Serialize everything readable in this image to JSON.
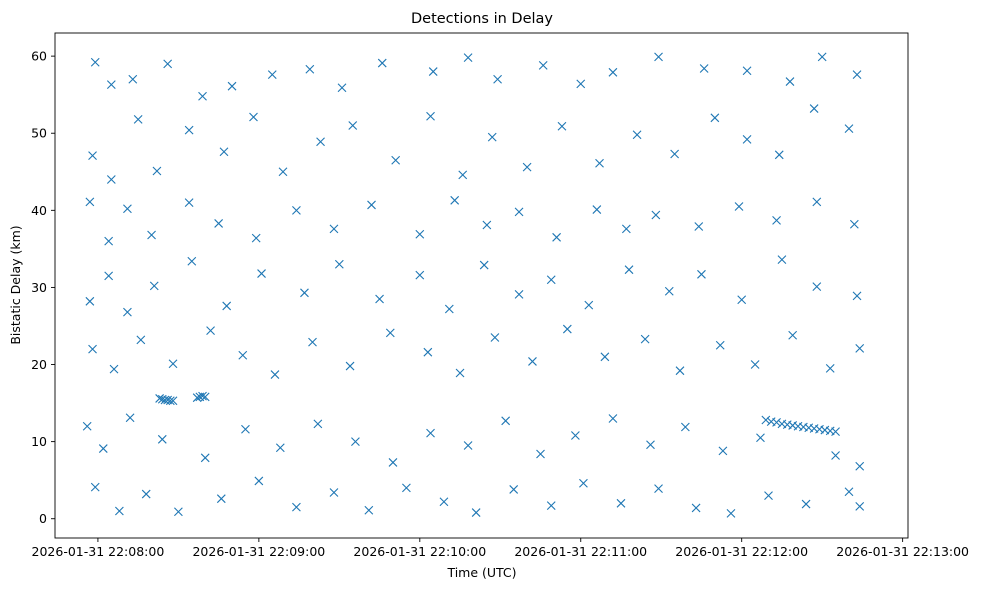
{
  "chart_data": {
    "type": "scatter",
    "title": "Detections in Delay",
    "xlabel": "Time (UTC)",
    "ylabel": "Bistatic Delay (km)",
    "marker": "x",
    "color": "#1f77b4",
    "grid": false,
    "xlim": [
      "2026-01-31 22:07:44",
      "2026-01-31 22:13:02"
    ],
    "ylim": [
      -2.5,
      63
    ],
    "x_ticks": [
      "2026-01-31 22:08:00",
      "2026-01-31 22:09:00",
      "2026-01-31 22:10:00",
      "2026-01-31 22:11:00",
      "2026-01-31 22:12:00",
      "2026-01-31 22:13:00"
    ],
    "y_ticks": [
      "0",
      "10",
      "20",
      "30",
      "40",
      "50",
      "60"
    ],
    "series": [
      {
        "points": [
          [
            "2026-01-31 22:07:59",
            59.2
          ],
          [
            "2026-01-31 22:08:05",
            56.3
          ],
          [
            "2026-01-31 22:08:13",
            57.0
          ],
          [
            "2026-01-31 22:08:26",
            59.0
          ],
          [
            "2026-01-31 22:08:39",
            54.8
          ],
          [
            "2026-01-31 22:08:50",
            56.1
          ],
          [
            "2026-01-31 22:09:05",
            57.6
          ],
          [
            "2026-01-31 22:09:19",
            58.3
          ],
          [
            "2026-01-31 22:09:31",
            55.9
          ],
          [
            "2026-01-31 22:09:46",
            59.1
          ],
          [
            "2026-01-31 22:10:05",
            58.0
          ],
          [
            "2026-01-31 22:10:18",
            59.8
          ],
          [
            "2026-01-31 22:10:29",
            57.0
          ],
          [
            "2026-01-31 22:10:46",
            58.8
          ],
          [
            "2026-01-31 22:11:00",
            56.4
          ],
          [
            "2026-01-31 22:11:12",
            57.9
          ],
          [
            "2026-01-31 22:11:29",
            59.9
          ],
          [
            "2026-01-31 22:11:46",
            58.4
          ],
          [
            "2026-01-31 22:12:02",
            58.1
          ],
          [
            "2026-01-31 22:12:18",
            56.7
          ],
          [
            "2026-01-31 22:12:30",
            59.9
          ],
          [
            "2026-01-31 22:12:43",
            57.6
          ],
          [
            "2026-01-31 22:07:58",
            47.1
          ],
          [
            "2026-01-31 22:08:05",
            44.0
          ],
          [
            "2026-01-31 22:08:15",
            51.8
          ],
          [
            "2026-01-31 22:08:22",
            45.1
          ],
          [
            "2026-01-31 22:08:34",
            50.4
          ],
          [
            "2026-01-31 22:08:47",
            47.6
          ],
          [
            "2026-01-31 22:08:58",
            52.1
          ],
          [
            "2026-01-31 22:09:09",
            45.0
          ],
          [
            "2026-01-31 22:09:23",
            48.9
          ],
          [
            "2026-01-31 22:09:35",
            51.0
          ],
          [
            "2026-01-31 22:09:51",
            46.5
          ],
          [
            "2026-01-31 22:10:04",
            52.2
          ],
          [
            "2026-01-31 22:10:16",
            44.6
          ],
          [
            "2026-01-31 22:10:27",
            49.5
          ],
          [
            "2026-01-31 22:10:40",
            45.6
          ],
          [
            "2026-01-31 22:10:53",
            50.9
          ],
          [
            "2026-01-31 22:11:07",
            46.1
          ],
          [
            "2026-01-31 22:11:21",
            49.8
          ],
          [
            "2026-01-31 22:11:35",
            47.3
          ],
          [
            "2026-01-31 22:11:50",
            52.0
          ],
          [
            "2026-01-31 22:12:02",
            49.2
          ],
          [
            "2026-01-31 22:12:14",
            47.2
          ],
          [
            "2026-01-31 22:12:27",
            53.2
          ],
          [
            "2026-01-31 22:12:40",
            50.6
          ],
          [
            "2026-01-31 22:07:57",
            41.1
          ],
          [
            "2026-01-31 22:08:04",
            36.0
          ],
          [
            "2026-01-31 22:08:11",
            40.2
          ],
          [
            "2026-01-31 22:08:20",
            36.8
          ],
          [
            "2026-01-31 22:08:34",
            41.0
          ],
          [
            "2026-01-31 22:08:45",
            38.3
          ],
          [
            "2026-01-31 22:08:59",
            36.4
          ],
          [
            "2026-01-31 22:09:14",
            40.0
          ],
          [
            "2026-01-31 22:09:28",
            37.6
          ],
          [
            "2026-01-31 22:09:42",
            40.7
          ],
          [
            "2026-01-31 22:10:00",
            36.9
          ],
          [
            "2026-01-31 22:10:13",
            41.3
          ],
          [
            "2026-01-31 22:10:25",
            38.1
          ],
          [
            "2026-01-31 22:10:37",
            39.8
          ],
          [
            "2026-01-31 22:10:51",
            36.5
          ],
          [
            "2026-01-31 22:11:06",
            40.1
          ],
          [
            "2026-01-31 22:11:17",
            37.6
          ],
          [
            "2026-01-31 22:11:28",
            39.4
          ],
          [
            "2026-01-31 22:11:44",
            37.9
          ],
          [
            "2026-01-31 22:11:59",
            40.5
          ],
          [
            "2026-01-31 22:12:13",
            38.7
          ],
          [
            "2026-01-31 22:12:28",
            41.1
          ],
          [
            "2026-01-31 22:12:42",
            38.2
          ],
          [
            "2026-01-31 22:07:57",
            28.2
          ],
          [
            "2026-01-31 22:08:04",
            31.5
          ],
          [
            "2026-01-31 22:08:11",
            26.8
          ],
          [
            "2026-01-31 22:08:21",
            30.2
          ],
          [
            "2026-01-31 22:08:35",
            33.4
          ],
          [
            "2026-01-31 22:08:48",
            27.6
          ],
          [
            "2026-01-31 22:09:01",
            31.8
          ],
          [
            "2026-01-31 22:09:17",
            29.3
          ],
          [
            "2026-01-31 22:09:30",
            33.0
          ],
          [
            "2026-01-31 22:09:45",
            28.5
          ],
          [
            "2026-01-31 22:10:00",
            31.6
          ],
          [
            "2026-01-31 22:10:11",
            27.2
          ],
          [
            "2026-01-31 22:10:24",
            32.9
          ],
          [
            "2026-01-31 22:10:37",
            29.1
          ],
          [
            "2026-01-31 22:10:49",
            31.0
          ],
          [
            "2026-01-31 22:11:03",
            27.7
          ],
          [
            "2026-01-31 22:11:18",
            32.3
          ],
          [
            "2026-01-31 22:11:33",
            29.5
          ],
          [
            "2026-01-31 22:11:45",
            31.7
          ],
          [
            "2026-01-31 22:12:00",
            28.4
          ],
          [
            "2026-01-31 22:12:15",
            33.6
          ],
          [
            "2026-01-31 22:12:28",
            30.1
          ],
          [
            "2026-01-31 22:12:43",
            28.9
          ],
          [
            "2026-01-31 22:07:58",
            22.0
          ],
          [
            "2026-01-31 22:08:06",
            19.4
          ],
          [
            "2026-01-31 22:08:16",
            23.2
          ],
          [
            "2026-01-31 22:08:28",
            20.1
          ],
          [
            "2026-01-31 22:08:42",
            24.4
          ],
          [
            "2026-01-31 22:08:54",
            21.2
          ],
          [
            "2026-01-31 22:09:06",
            18.7
          ],
          [
            "2026-01-31 22:09:20",
            22.9
          ],
          [
            "2026-01-31 22:09:34",
            19.8
          ],
          [
            "2026-01-31 22:09:49",
            24.1
          ],
          [
            "2026-01-31 22:10:03",
            21.6
          ],
          [
            "2026-01-31 22:10:15",
            18.9
          ],
          [
            "2026-01-31 22:10:28",
            23.5
          ],
          [
            "2026-01-31 22:10:42",
            20.4
          ],
          [
            "2026-01-31 22:10:55",
            24.6
          ],
          [
            "2026-01-31 22:11:09",
            21.0
          ],
          [
            "2026-01-31 22:11:24",
            23.3
          ],
          [
            "2026-01-31 22:11:37",
            19.2
          ],
          [
            "2026-01-31 22:11:52",
            22.5
          ],
          [
            "2026-01-31 22:12:05",
            20.0
          ],
          [
            "2026-01-31 22:12:19",
            23.8
          ],
          [
            "2026-01-31 22:12:33",
            19.5
          ],
          [
            "2026-01-31 22:12:44",
            22.1
          ],
          [
            "2026-01-31 22:07:56",
            12.0
          ],
          [
            "2026-01-31 22:08:02",
            9.1
          ],
          [
            "2026-01-31 22:08:12",
            13.1
          ],
          [
            "2026-01-31 22:08:24",
            10.3
          ],
          [
            "2026-01-31 22:08:40",
            7.9
          ],
          [
            "2026-01-31 22:08:55",
            11.6
          ],
          [
            "2026-01-31 22:09:08",
            9.2
          ],
          [
            "2026-01-31 22:09:22",
            12.3
          ],
          [
            "2026-01-31 22:09:36",
            10.0
          ],
          [
            "2026-01-31 22:09:50",
            7.3
          ],
          [
            "2026-01-31 22:10:04",
            11.1
          ],
          [
            "2026-01-31 22:10:18",
            9.5
          ],
          [
            "2026-01-31 22:10:32",
            12.7
          ],
          [
            "2026-01-31 22:10:45",
            8.4
          ],
          [
            "2026-01-31 22:10:58",
            10.8
          ],
          [
            "2026-01-31 22:11:12",
            13.0
          ],
          [
            "2026-01-31 22:11:26",
            9.6
          ],
          [
            "2026-01-31 22:11:39",
            11.9
          ],
          [
            "2026-01-31 22:11:53",
            8.8
          ],
          [
            "2026-01-31 22:12:07",
            10.5
          ],
          [
            "2026-01-31 22:12:35",
            8.2
          ],
          [
            "2026-01-31 22:12:44",
            6.8
          ],
          [
            "2026-01-31 22:07:59",
            4.1
          ],
          [
            "2026-01-31 22:08:08",
            1.0
          ],
          [
            "2026-01-31 22:08:18",
            3.2
          ],
          [
            "2026-01-31 22:08:30",
            0.9
          ],
          [
            "2026-01-31 22:08:46",
            2.6
          ],
          [
            "2026-01-31 22:09:00",
            4.9
          ],
          [
            "2026-01-31 22:09:14",
            1.5
          ],
          [
            "2026-01-31 22:09:28",
            3.4
          ],
          [
            "2026-01-31 22:09:41",
            1.1
          ],
          [
            "2026-01-31 22:09:55",
            4.0
          ],
          [
            "2026-01-31 22:10:09",
            2.2
          ],
          [
            "2026-01-31 22:10:21",
            0.8
          ],
          [
            "2026-01-31 22:10:35",
            3.8
          ],
          [
            "2026-01-31 22:10:49",
            1.7
          ],
          [
            "2026-01-31 22:11:01",
            4.6
          ],
          [
            "2026-01-31 22:11:15",
            2.0
          ],
          [
            "2026-01-31 22:11:29",
            3.9
          ],
          [
            "2026-01-31 22:11:43",
            1.4
          ],
          [
            "2026-01-31 22:11:56",
            0.7
          ],
          [
            "2026-01-31 22:12:10",
            3.0
          ],
          [
            "2026-01-31 22:12:24",
            1.9
          ],
          [
            "2026-01-31 22:12:40",
            3.5
          ],
          [
            "2026-01-31 22:12:44",
            1.6
          ],
          [
            "2026-01-31 22:08:23",
            15.6
          ],
          [
            "2026-01-31 22:08:24",
            15.5
          ],
          [
            "2026-01-31 22:08:25",
            15.4
          ],
          [
            "2026-01-31 22:08:26",
            15.4
          ],
          [
            "2026-01-31 22:08:27",
            15.3
          ],
          [
            "2026-01-31 22:08:28",
            15.3
          ],
          [
            "2026-01-31 22:08:37",
            15.7
          ],
          [
            "2026-01-31 22:08:38",
            15.8
          ],
          [
            "2026-01-31 22:08:39",
            15.9
          ],
          [
            "2026-01-31 22:08:40",
            15.8
          ],
          [
            "2026-01-31 22:12:09",
            12.8
          ],
          [
            "2026-01-31 22:12:11",
            12.6
          ],
          [
            "2026-01-31 22:12:13",
            12.5
          ],
          [
            "2026-01-31 22:12:15",
            12.3
          ],
          [
            "2026-01-31 22:12:17",
            12.2
          ],
          [
            "2026-01-31 22:12:19",
            12.1
          ],
          [
            "2026-01-31 22:12:21",
            12.0
          ],
          [
            "2026-01-31 22:12:23",
            11.9
          ],
          [
            "2026-01-31 22:12:25",
            11.8
          ],
          [
            "2026-01-31 22:12:27",
            11.7
          ],
          [
            "2026-01-31 22:12:29",
            11.6
          ],
          [
            "2026-01-31 22:12:31",
            11.5
          ],
          [
            "2026-01-31 22:12:33",
            11.4
          ],
          [
            "2026-01-31 22:12:35",
            11.3
          ]
        ]
      }
    ]
  }
}
